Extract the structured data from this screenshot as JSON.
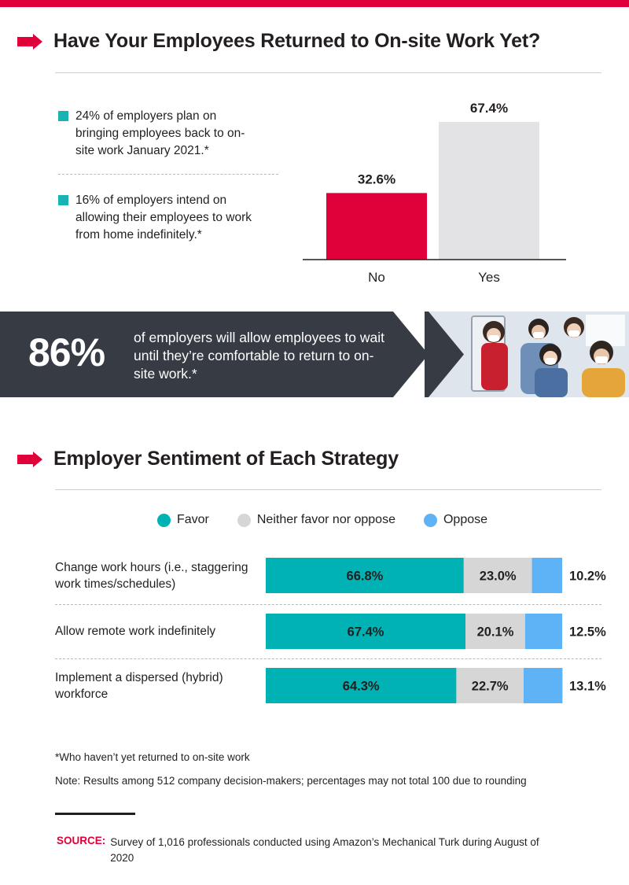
{
  "section1": {
    "title": "Have Your Employees Returned to On-site Work Yet?",
    "bullets": [
      "24% of employers plan on bringing employees back to on-site work January 2021.*",
      "16% of employers intend on allowing their employees to work from home indefinitely.*"
    ]
  },
  "banner": {
    "stat": "86%",
    "text": "of employers will allow employees to wait until they’re comfortable to return to on-site work.*"
  },
  "section2": {
    "title": "Employer Sentiment of Each Strategy"
  },
  "colors": {
    "accent_red": "#e0003a",
    "favor": "#00b2b4",
    "neither": "#d6d6d6",
    "oppose": "#5eb2f6",
    "yes_bar": "#e3e3e5",
    "banner_dark": "#373c44"
  },
  "chart_data": [
    {
      "type": "bar",
      "categories": [
        "No",
        "Yes"
      ],
      "values": [
        32.6,
        67.4
      ],
      "value_labels": [
        "32.6%",
        "67.4%"
      ],
      "colors": [
        "#e0003a",
        "#e3e3e5"
      ],
      "title": "",
      "xlabel": "",
      "ylabel": "",
      "ylim": [
        0,
        67.4
      ],
      "grid": false
    },
    {
      "type": "bar",
      "stacked": true,
      "orientation": "horizontal",
      "categories": [
        "Change work hours (i.e., staggering work times/schedules)",
        "Allow remote work indefinitely",
        "Implement a dispersed (hybrid) workforce"
      ],
      "series": [
        {
          "name": "Favor",
          "values": [
            66.8,
            67.4,
            64.3
          ],
          "color": "#00b2b4"
        },
        {
          "name": "Neither favor nor oppose",
          "values": [
            23.0,
            20.1,
            22.7
          ],
          "color": "#d6d6d6"
        },
        {
          "name": "Oppose",
          "values": [
            10.2,
            12.5,
            13.1
          ],
          "color": "#5eb2f6"
        }
      ],
      "value_labels": [
        [
          "66.8%",
          "23.0%",
          "10.2%"
        ],
        [
          "67.4%",
          "20.1%",
          "12.5%"
        ],
        [
          "64.3%",
          "22.7%",
          "13.1%"
        ]
      ],
      "legend_position": "top",
      "xlim": [
        0,
        100
      ],
      "grid": false
    }
  ],
  "footnotes": {
    "asterisk": "*Who haven’t yet returned to on-site work",
    "note": "Note: Results among 512 company decision-makers; percentages may not total 100 due to rounding"
  },
  "source": {
    "label": "SOURCE:",
    "text": "Survey of 1,016 professionals conducted using Amazon’s Mechanical Turk during August of 2020"
  }
}
